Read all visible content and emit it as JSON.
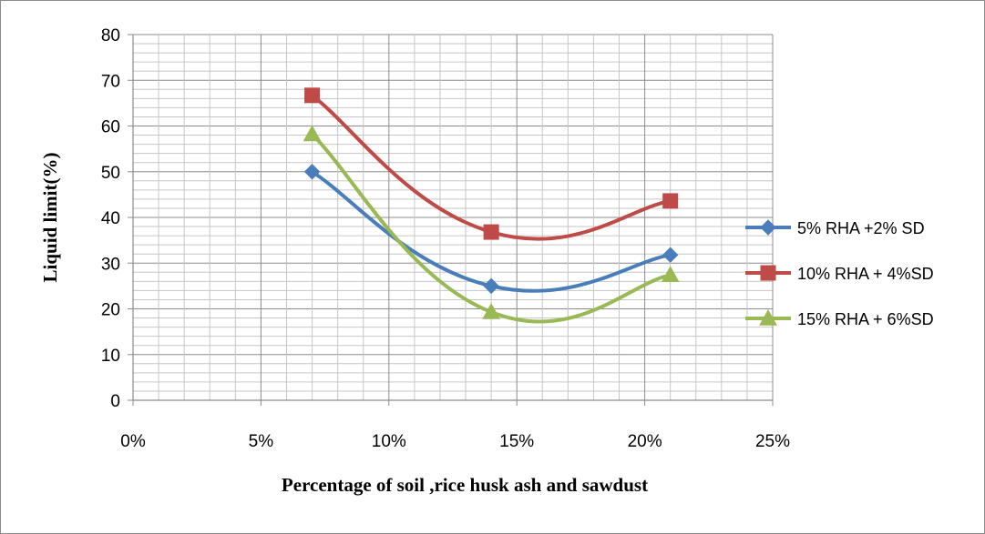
{
  "chart_data": {
    "type": "line",
    "title": "",
    "xlabel": "Percentage of soil ,rice husk ash and sawdust",
    "ylabel": "Liquid limit(%)",
    "xlim": [
      0,
      25
    ],
    "ylim": [
      0,
      80
    ],
    "x_ticks": [
      "0%",
      "5%",
      "10%",
      "15%",
      "20%",
      "25%"
    ],
    "y_ticks": [
      "0",
      "10",
      "20",
      "30",
      "40",
      "50",
      "60",
      "70",
      "80"
    ],
    "grid": true,
    "smooth": true,
    "legend_position": "right",
    "x": [
      7,
      14,
      21
    ],
    "series": [
      {
        "name": "5% RHA +2% SD",
        "values": [
          50,
          25,
          31.8
        ],
        "color": "#4a7ebb",
        "marker": "diamond"
      },
      {
        "name": "10% RHA + 4%SD",
        "values": [
          66.7,
          36.8,
          43.6
        ],
        "color": "#be4b48",
        "marker": "square"
      },
      {
        "name": "15% RHA + 6%SD",
        "values": [
          58.2,
          19.3,
          27.4
        ],
        "color": "#98b954",
        "marker": "triangle"
      }
    ]
  }
}
